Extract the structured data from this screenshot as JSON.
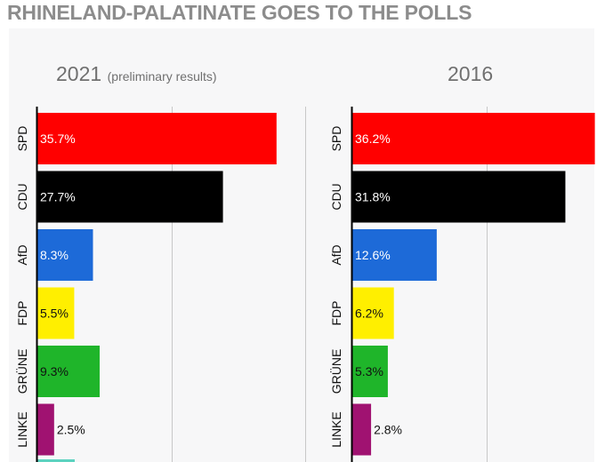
{
  "title": "RHINELAND-PALATINATE GOES TO THE POLLS",
  "colors": {
    "SPD": "#ff0000",
    "CDU": "#000000",
    "AfD": "#1d6ad8",
    "FDP": "#ffef00",
    "GRÜNE": "#1fb52a",
    "LINKE": "#a01271",
    "partial_next": "#5cd2bf",
    "gridline": "#c8c8c8",
    "axis": "#000000"
  },
  "chart_data": [
    {
      "type": "bar",
      "orientation": "horizontal",
      "title": "2021",
      "subtitle": "(preliminary results)",
      "categories": [
        "SPD",
        "CDU",
        "AfD",
        "FDP",
        "GRÜNE",
        "LINKE"
      ],
      "values": [
        35.7,
        27.7,
        8.3,
        5.5,
        9.3,
        2.5
      ],
      "value_labels": [
        "35.7%",
        "27.7%",
        "8.3%",
        "5.5%",
        "9.3%",
        "2.5%"
      ],
      "xlim": [
        0,
        40
      ],
      "grid": true
    },
    {
      "type": "bar",
      "orientation": "horizontal",
      "title": "2016",
      "categories": [
        "SPD",
        "CDU",
        "AfD",
        "FDP",
        "GRÜNE",
        "LINKE"
      ],
      "values": [
        36.2,
        31.8,
        12.6,
        6.2,
        5.3,
        2.8
      ],
      "value_labels": [
        "36.2%",
        "31.8%",
        "12.6%",
        "6.2%",
        "5.3%",
        "2.8%"
      ],
      "xlim": [
        0,
        40
      ],
      "grid": true
    }
  ]
}
